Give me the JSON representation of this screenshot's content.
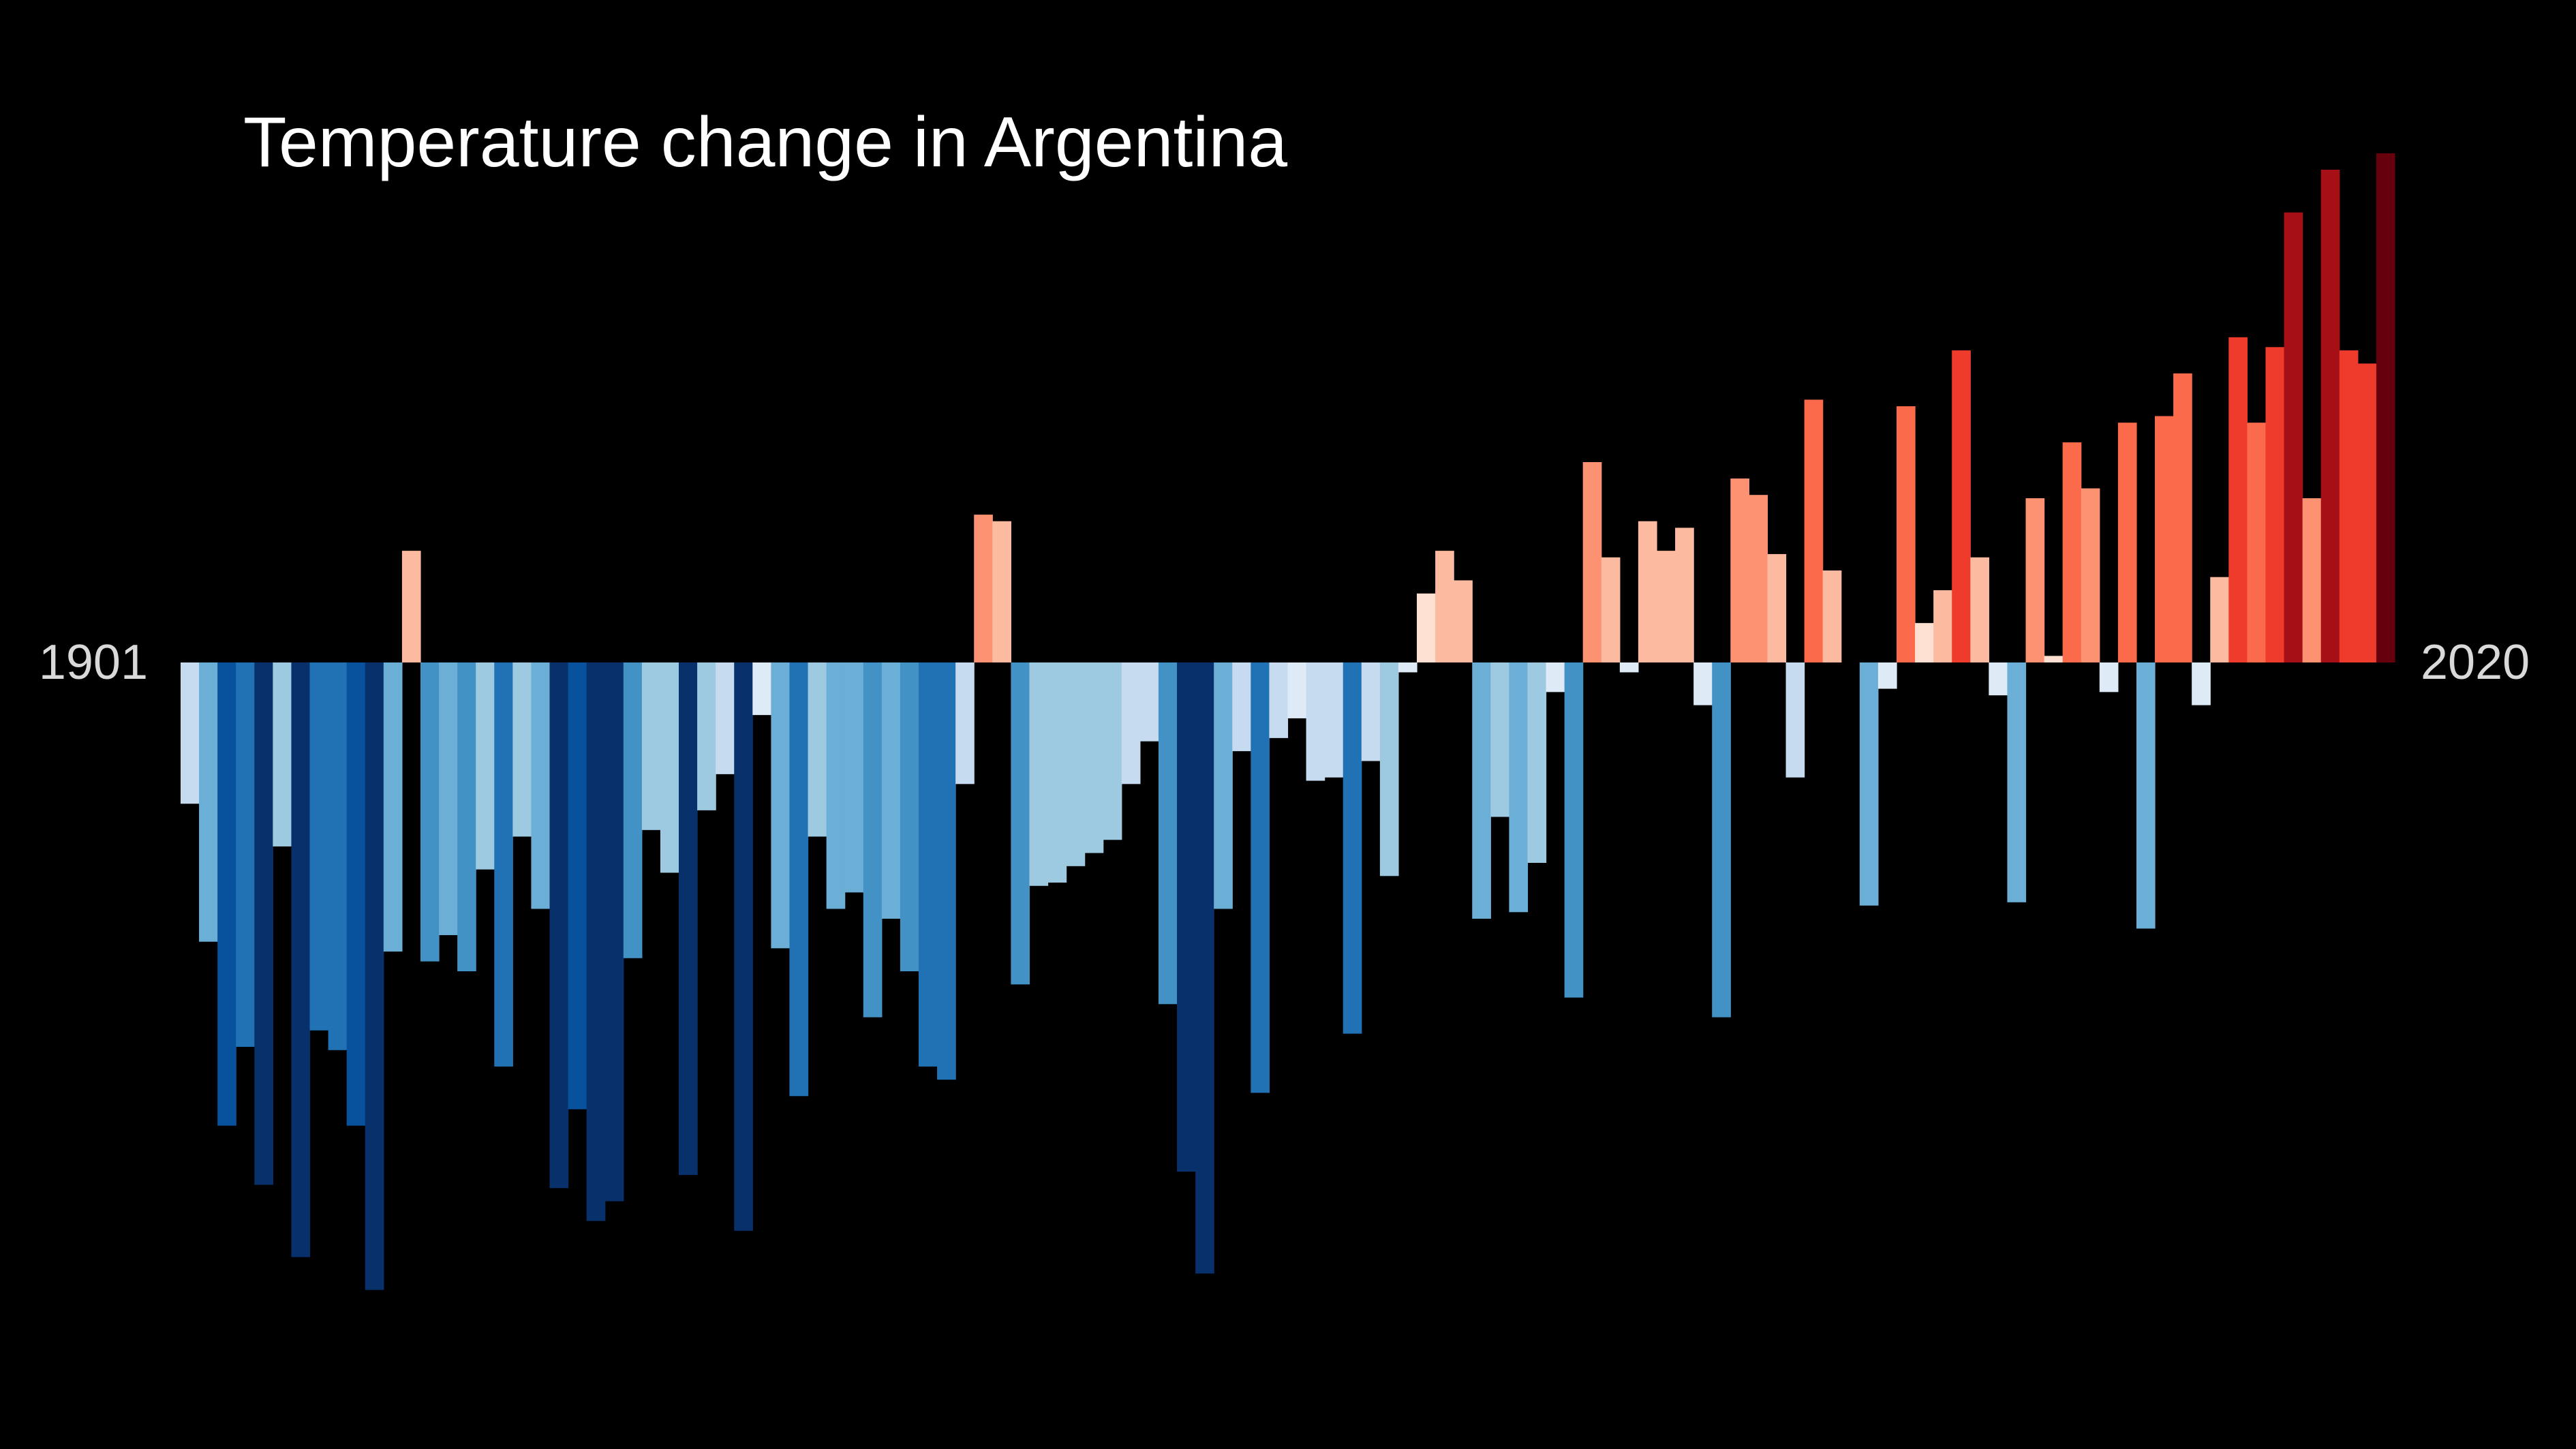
{
  "chart_data": {
    "type": "bar",
    "title": "Temperature change in Argentina",
    "xlabel": "",
    "ylabel": "",
    "x_start_label": "1901",
    "x_end_label": "2020",
    "grid": false,
    "legend": "none",
    "ylim": [
      -2.0,
      1.6
    ],
    "x": [
      1901,
      1902,
      1903,
      1904,
      1905,
      1906,
      1907,
      1908,
      1909,
      1910,
      1911,
      1912,
      1913,
      1914,
      1915,
      1916,
      1917,
      1918,
      1919,
      1920,
      1921,
      1922,
      1923,
      1924,
      1925,
      1926,
      1927,
      1928,
      1929,
      1930,
      1931,
      1932,
      1933,
      1934,
      1935,
      1936,
      1937,
      1938,
      1939,
      1940,
      1941,
      1942,
      1943,
      1944,
      1945,
      1946,
      1947,
      1948,
      1949,
      1950,
      1951,
      1952,
      1953,
      1954,
      1955,
      1956,
      1957,
      1958,
      1959,
      1960,
      1961,
      1962,
      1963,
      1964,
      1965,
      1966,
      1967,
      1968,
      1969,
      1970,
      1971,
      1972,
      1973,
      1974,
      1975,
      1976,
      1977,
      1978,
      1979,
      1980,
      1981,
      1982,
      1983,
      1984,
      1985,
      1986,
      1987,
      1988,
      1989,
      1990,
      1991,
      1992,
      1993,
      1994,
      1995,
      1996,
      1997,
      1998,
      1999,
      2000,
      2001,
      2002,
      2003,
      2004,
      2005,
      2006,
      2007,
      2008,
      2009,
      2010,
      2011,
      2012,
      2013,
      2014,
      2015,
      2016,
      2017,
      2018,
      2019,
      2020
    ],
    "values": [
      -0.43,
      -0.85,
      -1.41,
      -1.17,
      -1.59,
      -0.56,
      -1.81,
      -1.12,
      -1.18,
      -1.41,
      -1.91,
      -0.88,
      0.34,
      -0.91,
      -0.83,
      -0.94,
      -0.63,
      -1.23,
      -0.53,
      -0.75,
      -1.6,
      -1.36,
      -1.7,
      -1.64,
      -0.9,
      -0.51,
      -0.64,
      -1.56,
      -0.45,
      -0.34,
      -1.73,
      -0.16,
      -0.87,
      -1.32,
      -0.53,
      -0.75,
      -0.7,
      -1.08,
      -0.78,
      -0.94,
      -1.23,
      -1.27,
      -0.37,
      0.45,
      0.43,
      -0.98,
      -0.68,
      -0.67,
      -0.62,
      -0.58,
      -0.54,
      -0.37,
      -0.24,
      -1.04,
      -1.55,
      -1.86,
      -0.75,
      -0.27,
      -1.31,
      -0.23,
      -0.17,
      -0.36,
      -0.35,
      -1.13,
      -0.3,
      -0.65,
      -0.03,
      0.21,
      0.34,
      0.25,
      -0.78,
      -0.47,
      -0.76,
      -0.61,
      -0.09,
      -1.02,
      0.61,
      0.32,
      -0.03,
      0.43,
      0.34,
      0.41,
      -0.13,
      -1.08,
      0.56,
      0.51,
      0.33,
      -0.35,
      0.8,
      0.28,
      0.0,
      -0.74,
      -0.08,
      0.78,
      0.12,
      0.22,
      0.95,
      0.32,
      -0.1,
      -0.73,
      0.5,
      0.02,
      0.67,
      0.53,
      -0.09,
      0.73,
      -0.81,
      0.75,
      0.88,
      -0.13,
      0.26,
      0.99,
      0.73,
      0.96,
      1.37,
      0.5,
      1.5,
      0.95,
      0.91,
      1.55
    ],
    "colors": {
      "background": "#000000",
      "cool_scale": [
        "#deebf7",
        "#c6dbef",
        "#9ecae1",
        "#6baed6",
        "#4292c6",
        "#2171b5",
        "#08519c",
        "#08306b"
      ],
      "warm_scale": [
        "#fee0d2",
        "#fcbba1",
        "#fc9272",
        "#fb6a4a",
        "#ef3b2c",
        "#a50f15",
        "#67000d"
      ]
    }
  }
}
